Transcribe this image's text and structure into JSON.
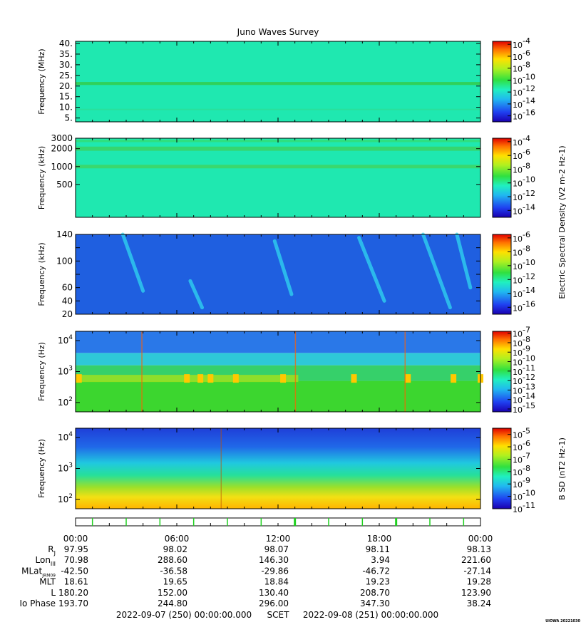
{
  "chart_data": {
    "type": "heatmap",
    "title": "Juno Waves Survey",
    "panels": [
      {
        "id": "p1",
        "ylabel": "Frequency (MHz)",
        "yscale": "linear",
        "ylim": [
          3.2,
          41
        ],
        "yticks": [
          5,
          10,
          15,
          20,
          25,
          30,
          35,
          40
        ],
        "ytick_labels": [
          "5.",
          "10.",
          "15.",
          "20.",
          "25.",
          "30.",
          "35.",
          "40."
        ],
        "colorbar_ticks": [
          "10-4",
          "10-6",
          "10-8",
          "10-10",
          "10-12",
          "10-14",
          "10-16"
        ],
        "colorbar_range_log10": [
          -17,
          -3.5
        ],
        "base_color": "#1fe8b0",
        "bands": [
          {
            "center": 21.2,
            "halfwidth": 0.7,
            "color": "#2fd15a"
          },
          {
            "center": 9.0,
            "halfwidth": 0.3,
            "color": "#29e09b"
          }
        ]
      },
      {
        "id": "p2",
        "ylabel": "Frequency (kHz)",
        "yscale": "log",
        "ylim": [
          140,
          3000
        ],
        "yticks": [
          500,
          1000,
          2000,
          3000
        ],
        "ytick_labels": [
          "500",
          "1000",
          "2000",
          "3000"
        ],
        "colorbar_ticks": [
          "10-4",
          "10-6",
          "10-8",
          "10-10",
          "10-12",
          "10-14"
        ],
        "colorbar_range_log10": [
          -15,
          -3.5
        ],
        "colorbar_label": "Electric Spectral Density (V2 m-2 Hz-1)",
        "base_color": "#1fe8b0",
        "bands": [
          {
            "center": 2000,
            "halfwidth": 0.035,
            "color": "#36d66e"
          },
          {
            "center": 1000,
            "halfwidth": 0.03,
            "color": "#3ad86e"
          },
          {
            "center": 2700,
            "halfwidth": 0.02,
            "color": "#2fe07e"
          }
        ]
      },
      {
        "id": "p3",
        "ylabel": "Frequency (kHz)",
        "yscale": "linear",
        "ylim": [
          20,
          140
        ],
        "yticks": [
          20,
          40,
          60,
          80,
          100,
          120,
          140
        ],
        "ytick_labels": [
          "20",
          "40",
          "60",
          "",
          "100",
          "",
          "140"
        ],
        "colorbar_ticks": [
          "10-6",
          "10-8",
          "10-10",
          "10-12",
          "10-14",
          "10-16"
        ],
        "colorbar_range_log10": [
          -17,
          -5.5
        ],
        "base_color": "#1f5fe0",
        "features": [
          {
            "x_hours": 2.8,
            "f_low": 55,
            "f_high": 140,
            "drift_hours": 1.2
          },
          {
            "x_hours": 6.8,
            "f_low": 30,
            "f_high": 70,
            "drift_hours": 0.7
          },
          {
            "x_hours": 11.8,
            "f_low": 50,
            "f_high": 130,
            "drift_hours": 1.0
          },
          {
            "x_hours": 16.8,
            "f_low": 40,
            "f_high": 135,
            "drift_hours": 1.5
          },
          {
            "x_hours": 20.6,
            "f_low": 30,
            "f_high": 140,
            "drift_hours": 1.6
          },
          {
            "x_hours": 22.6,
            "f_low": 60,
            "f_high": 140,
            "drift_hours": 0.8
          }
        ]
      },
      {
        "id": "p4",
        "ylabel": "Frequency (Hz)",
        "yscale": "log",
        "ylim": [
          50,
          20000
        ],
        "yticks": [
          100,
          1000,
          10000
        ],
        "ytick_labels": [
          "10^2",
          "10^3",
          "10^4"
        ],
        "colorbar_ticks": [
          "10-7",
          "10-8",
          "10-9",
          "10-10",
          "10-11",
          "10-12",
          "10-13",
          "10-14",
          "10-15"
        ],
        "colorbar_range_log10": [
          -15.3,
          -6.8
        ],
        "layers": [
          {
            "f_low": 50,
            "f_high": 500,
            "color": "#3cd62f"
          },
          {
            "f_low": 500,
            "f_high": 1600,
            "color": "#36d06a"
          },
          {
            "f_low": 1600,
            "f_high": 4000,
            "color": "#2ec8d8"
          },
          {
            "f_low": 4000,
            "f_high": 20000,
            "color": "#2a78e8"
          }
        ],
        "hot_spots_hours": [
          0.2,
          6.6,
          7.4,
          8.0,
          9.5,
          12.3,
          16.5,
          19.7,
          22.4,
          24.0
        ]
      },
      {
        "id": "p5",
        "ylabel": "Frequency (Hz)",
        "yscale": "log",
        "ylim": [
          50,
          20000
        ],
        "yticks": [
          100,
          1000,
          10000
        ],
        "ytick_labels": [
          "10^2",
          "10^3",
          "10^4"
        ],
        "colorbar_ticks": [
          "10-5",
          "10-6",
          "10-7",
          "10-8",
          "10-9",
          "10-10",
          "10-11"
        ],
        "colorbar_range_log10": [
          -11,
          -4.5
        ],
        "colorbar_label": "B SD (nT2 Hz-1)",
        "gradient": [
          {
            "freq": 20000,
            "color": "#1f3fd8"
          },
          {
            "freq": 5000,
            "color": "#2068e8"
          },
          {
            "freq": 1500,
            "color": "#20c8e0"
          },
          {
            "freq": 600,
            "color": "#26e09a"
          },
          {
            "freq": 250,
            "color": "#9be02a"
          },
          {
            "freq": 120,
            "color": "#f2e014"
          },
          {
            "freq": 50,
            "color": "#ffb400"
          }
        ]
      }
    ],
    "time_axis": {
      "start_hours": 0,
      "end_hours": 24,
      "major_labels": [
        "00:00",
        "06:00",
        "12:00",
        "18:00",
        "00:00"
      ],
      "minor_step_hours": 1,
      "tick_strip_marks_hours": [
        1,
        3,
        5,
        7,
        9,
        11,
        13,
        15,
        17,
        19,
        21,
        23
      ],
      "tick_strip_highlight_hours": [
        13,
        19
      ]
    },
    "ephemeris": [
      {
        "name": "RJ",
        "values": [
          "97.95",
          "98.02",
          "98.07",
          "98.11",
          "98.13"
        ]
      },
      {
        "name": "LonIII",
        "values": [
          "70.98",
          "288.60",
          "146.30",
          "3.94",
          "221.60"
        ]
      },
      {
        "name": "MLatJRM09",
        "values": [
          "-42.50",
          "-36.58",
          "-29.86",
          "-46.72",
          "-27.14"
        ]
      },
      {
        "name": "MLT",
        "values": [
          "18.61",
          "19.65",
          "18.84",
          "19.23",
          "19.28"
        ]
      },
      {
        "name": "L",
        "values": [
          "180.20",
          "152.00",
          "130.40",
          "208.70",
          "123.90"
        ]
      },
      {
        "name": "Io Phase",
        "values": [
          "193.70",
          "244.80",
          "296.00",
          "347.30",
          "38.24"
        ]
      }
    ],
    "footer": {
      "start": "2022-09-07 (250) 00:00:00.000",
      "scet": "SCET",
      "end": "2022-09-08 (251) 00:00:00.000",
      "stamp": "UIOWA 20221030"
    }
  }
}
